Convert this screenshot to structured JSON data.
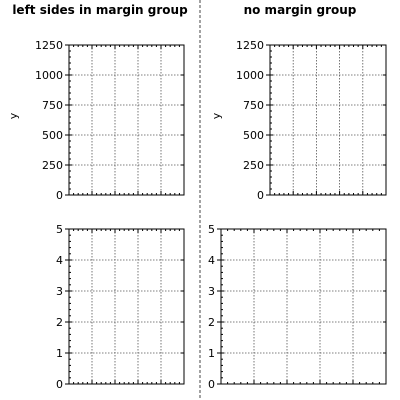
{
  "chart_data": [
    {
      "type": "scatter",
      "title": "left sides in margin group",
      "ylabel": "y",
      "xlim": [
        0,
        5
      ],
      "ylim": [
        0,
        1250
      ],
      "yticks": [
        0,
        250,
        500,
        750,
        1000,
        1250
      ],
      "grid": true,
      "series": []
    },
    {
      "type": "scatter",
      "title": "no margin group",
      "ylabel": "y",
      "xlim": [
        0,
        5
      ],
      "ylim": [
        0,
        1250
      ],
      "yticks": [
        0,
        250,
        500,
        750,
        1000,
        1250
      ],
      "grid": true,
      "series": []
    },
    {
      "type": "scatter",
      "title": "",
      "ylabel": "",
      "xlim": [
        0,
        5
      ],
      "ylim": [
        0,
        5
      ],
      "yticks": [
        0,
        1,
        2,
        3,
        4,
        5
      ],
      "grid": true,
      "series": []
    },
    {
      "type": "scatter",
      "title": "",
      "ylabel": "",
      "xlim": [
        0,
        5
      ],
      "ylim": [
        0,
        5
      ],
      "yticks": [
        0,
        1,
        2,
        3,
        4,
        5
      ],
      "grid": true,
      "series": []
    }
  ]
}
